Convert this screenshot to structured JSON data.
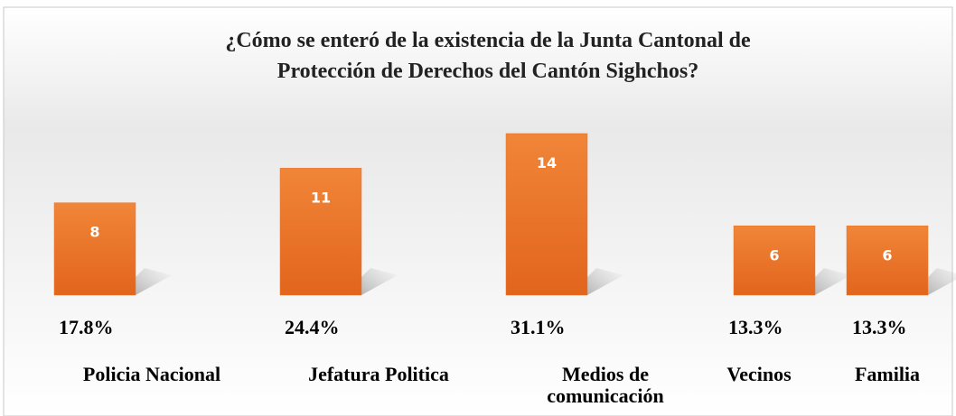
{
  "chart_data": {
    "type": "bar",
    "title": [
      "¿Cómo se enteró de la existencia de la Junta Cantonal de",
      "Protección de Derechos del Cantón Sighchos?"
    ],
    "categories": [
      "Policia Nacional",
      "Jefatura Politica",
      "Medios de comunicación",
      "Vecinos",
      "Familia"
    ],
    "values": [
      8,
      11,
      14,
      6,
      6
    ],
    "percentages": [
      "17.8%",
      "24.4%",
      "31.1%",
      "13.3%",
      "13.3%"
    ],
    "color": "#e8742a",
    "ylim": [
      0,
      14
    ]
  }
}
